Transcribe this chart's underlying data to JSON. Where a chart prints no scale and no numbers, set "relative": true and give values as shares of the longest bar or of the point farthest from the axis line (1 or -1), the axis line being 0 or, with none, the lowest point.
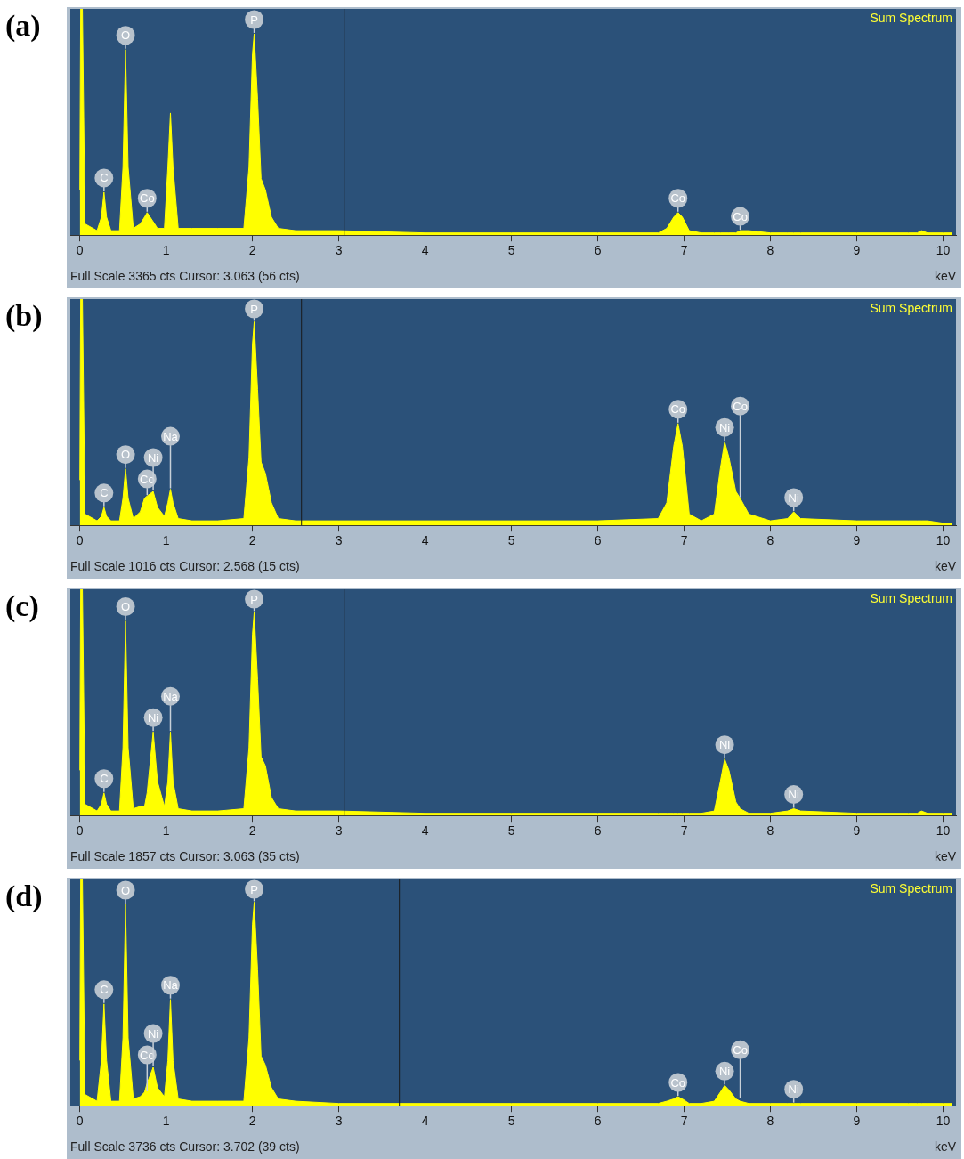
{
  "chart_data": [
    {
      "type": "area",
      "title": "(a)",
      "xlabel": "keV",
      "relative": true,
      "xlim": [
        -0.11,
        10.15
      ],
      "xticks": [
        0,
        1,
        2,
        3,
        4,
        5,
        6,
        7,
        8,
        9,
        10
      ],
      "legend": false,
      "grid": false,
      "x": [
        0,
        0.01,
        0.03,
        0.06,
        0.2,
        0.25,
        0.28,
        0.31,
        0.36,
        0.46,
        0.5,
        0.53,
        0.56,
        0.62,
        0.7,
        0.75,
        0.78,
        0.85,
        0.9,
        0.98,
        1.02,
        1.05,
        1.08,
        1.14,
        1.3,
        1.6,
        1.9,
        1.96,
        2.0,
        2.02,
        2.06,
        2.1,
        2.15,
        2.22,
        2.3,
        2.5,
        3.0,
        4.0,
        5.0,
        6.0,
        6.7,
        6.8,
        6.88,
        6.93,
        6.98,
        7.06,
        7.2,
        7.35,
        7.42,
        7.47,
        7.52,
        7.6,
        7.65,
        7.75,
        8.0,
        8.2,
        8.27,
        8.35,
        9.0,
        9.6,
        9.7,
        9.75,
        9.82,
        10.0,
        10.1
      ],
      "series": [
        {
          "color": "#ffff00",
          "values": [
            0.2,
            1,
            1,
            0.05,
            0.02,
            0.08,
            0.19,
            0.08,
            0.02,
            0.02,
            0.3,
            0.82,
            0.3,
            0.03,
            0.05,
            0.08,
            0.1,
            0.06,
            0.03,
            0.03,
            0.3,
            0.54,
            0.3,
            0.03,
            0.03,
            0.03,
            0.03,
            0.3,
            0.8,
            0.89,
            0.6,
            0.25,
            0.2,
            0.08,
            0.03,
            0.02,
            0.02,
            0.01,
            0.01,
            0.01,
            0.01,
            0.03,
            0.08,
            0.1,
            0.08,
            0.02,
            0.01,
            0.01,
            0.01,
            0.01,
            0.01,
            0.01,
            0.02,
            0.02,
            0.01,
            0.01,
            0.01,
            0.01,
            0.01,
            0.01,
            0.01,
            0.02,
            0.01,
            0.01,
            0.01
          ]
        }
      ],
      "ref_lines": [
        {
          "axis": "x",
          "value": 3.063,
          "color": "#1a1a1a"
        }
      ],
      "annotations": [
        "Sum Spectrum",
        "Full Scale 3365 cts Cursor: 3.063 (56 cts)",
        {
          "text": "C",
          "x": 0.28,
          "y": 0.19
        },
        {
          "text": "O",
          "x": 0.53,
          "y": 0.82
        },
        {
          "text": "Co",
          "x": 0.78,
          "y": 0.1
        },
        {
          "text": "P",
          "x": 2.02,
          "y": 0.89
        },
        {
          "text": "Co",
          "x": 6.93,
          "y": 0.1
        },
        {
          "text": "Co",
          "x": 7.65,
          "y": 0.02
        }
      ]
    },
    {
      "type": "area",
      "title": "(b)",
      "xlabel": "keV",
      "relative": true,
      "xlim": [
        -0.11,
        10.15
      ],
      "xticks": [
        0,
        1,
        2,
        3,
        4,
        5,
        6,
        7,
        8,
        9,
        10
      ],
      "legend": false,
      "grid": false,
      "x": [
        0,
        0.01,
        0.03,
        0.06,
        0.2,
        0.25,
        0.28,
        0.31,
        0.36,
        0.46,
        0.5,
        0.53,
        0.56,
        0.62,
        0.7,
        0.75,
        0.78,
        0.85,
        0.9,
        0.98,
        1.02,
        1.05,
        1.08,
        1.14,
        1.3,
        1.6,
        1.9,
        1.96,
        2.0,
        2.02,
        2.06,
        2.1,
        2.15,
        2.22,
        2.3,
        2.5,
        3.0,
        4.0,
        5.0,
        6.0,
        6.7,
        6.8,
        6.88,
        6.93,
        6.98,
        7.06,
        7.2,
        7.35,
        7.42,
        7.47,
        7.52,
        7.6,
        7.65,
        7.75,
        8.0,
        8.2,
        8.27,
        8.35,
        9.0,
        9.6,
        9.7,
        9.75,
        9.82,
        10.0,
        10.1
      ],
      "series": [
        {
          "color": "#ffff00",
          "values": [
            0.2,
            1,
            1,
            0.05,
            0.02,
            0.04,
            0.08,
            0.04,
            0.02,
            0.02,
            0.12,
            0.25,
            0.12,
            0.03,
            0.06,
            0.12,
            0.13,
            0.15,
            0.08,
            0.04,
            0.1,
            0.16,
            0.1,
            0.03,
            0.02,
            0.02,
            0.03,
            0.3,
            0.8,
            0.9,
            0.6,
            0.28,
            0.23,
            0.1,
            0.03,
            0.02,
            0.02,
            0.02,
            0.02,
            0.02,
            0.03,
            0.1,
            0.35,
            0.45,
            0.35,
            0.05,
            0.02,
            0.05,
            0.25,
            0.37,
            0.3,
            0.15,
            0.12,
            0.05,
            0.02,
            0.03,
            0.06,
            0.03,
            0.02,
            0.02,
            0.02,
            0.02,
            0.02,
            0.01,
            0.01
          ]
        }
      ],
      "ref_lines": [
        {
          "axis": "x",
          "value": 2.568,
          "color": "#1a1a1a"
        }
      ],
      "annotations": [
        "Sum Spectrum",
        "Full Scale 1016 cts Cursor: 2.568 (15 cts)",
        {
          "text": "C",
          "x": 0.28,
          "y": 0.08
        },
        {
          "text": "O",
          "x": 0.53,
          "y": 0.25
        },
        {
          "text": "Co",
          "x": 0.78,
          "y": 0.13
        },
        {
          "text": "Ni",
          "x": 0.85,
          "y": 0.15
        },
        {
          "text": "Na",
          "x": 1.05,
          "y": 0.16
        },
        {
          "text": "P",
          "x": 2.02,
          "y": 0.9
        },
        {
          "text": "Co",
          "x": 6.93,
          "y": 0.45
        },
        {
          "text": "Ni",
          "x": 7.47,
          "y": 0.37
        },
        {
          "text": "Co",
          "x": 7.65,
          "y": 0.12
        },
        {
          "text": "Ni",
          "x": 8.27,
          "y": 0.06
        }
      ]
    },
    {
      "type": "area",
      "title": "(c)",
      "xlabel": "keV",
      "relative": true,
      "xlim": [
        -0.11,
        10.15
      ],
      "xticks": [
        0,
        1,
        2,
        3,
        4,
        5,
        6,
        7,
        8,
        9,
        10
      ],
      "legend": false,
      "grid": false,
      "x": [
        0,
        0.01,
        0.03,
        0.06,
        0.2,
        0.25,
        0.28,
        0.31,
        0.36,
        0.46,
        0.5,
        0.53,
        0.56,
        0.62,
        0.7,
        0.75,
        0.78,
        0.85,
        0.9,
        0.98,
        1.02,
        1.05,
        1.08,
        1.14,
        1.3,
        1.6,
        1.9,
        1.96,
        2.0,
        2.02,
        2.06,
        2.1,
        2.15,
        2.22,
        2.3,
        2.5,
        3.0,
        4.0,
        5.0,
        6.0,
        6.7,
        6.8,
        6.88,
        6.93,
        6.98,
        7.06,
        7.2,
        7.35,
        7.42,
        7.47,
        7.52,
        7.6,
        7.65,
        7.75,
        8.0,
        8.2,
        8.27,
        8.35,
        9.0,
        9.6,
        9.7,
        9.75,
        9.82,
        10.0,
        10.1
      ],
      "series": [
        {
          "color": "#ffff00",
          "values": [
            0.2,
            1,
            1,
            0.05,
            0.02,
            0.05,
            0.1,
            0.05,
            0.02,
            0.02,
            0.3,
            0.86,
            0.3,
            0.03,
            0.04,
            0.04,
            0.1,
            0.37,
            0.15,
            0.04,
            0.15,
            0.37,
            0.15,
            0.03,
            0.02,
            0.02,
            0.03,
            0.3,
            0.8,
            0.9,
            0.6,
            0.26,
            0.22,
            0.08,
            0.03,
            0.02,
            0.02,
            0.01,
            0.01,
            0.01,
            0.01,
            0.01,
            0.01,
            0.01,
            0.01,
            0.01,
            0.01,
            0.02,
            0.15,
            0.25,
            0.2,
            0.06,
            0.03,
            0.01,
            0.01,
            0.02,
            0.03,
            0.02,
            0.01,
            0.01,
            0.01,
            0.02,
            0.01,
            0.01,
            0.01
          ]
        }
      ],
      "ref_lines": [
        {
          "axis": "x",
          "value": 3.063,
          "color": "#1a1a1a"
        }
      ],
      "annotations": [
        "Sum Spectrum",
        "Full Scale 1857 cts Cursor: 3.063 (35 cts)",
        {
          "text": "C",
          "x": 0.28,
          "y": 0.1
        },
        {
          "text": "O",
          "x": 0.53,
          "y": 0.86
        },
        {
          "text": "Ni",
          "x": 0.85,
          "y": 0.37
        },
        {
          "text": "Na",
          "x": 1.05,
          "y": 0.37
        },
        {
          "text": "P",
          "x": 2.02,
          "y": 0.9
        },
        {
          "text": "Ni",
          "x": 7.47,
          "y": 0.25
        },
        {
          "text": "Ni",
          "x": 8.27,
          "y": 0.03
        }
      ]
    },
    {
      "type": "area",
      "title": "(d)",
      "xlabel": "keV",
      "relative": true,
      "xlim": [
        -0.11,
        10.15
      ],
      "xticks": [
        0,
        1,
        2,
        3,
        4,
        5,
        6,
        7,
        8,
        9,
        10
      ],
      "legend": false,
      "grid": false,
      "x": [
        0,
        0.01,
        0.03,
        0.06,
        0.2,
        0.25,
        0.28,
        0.31,
        0.36,
        0.46,
        0.5,
        0.53,
        0.56,
        0.62,
        0.7,
        0.75,
        0.78,
        0.85,
        0.9,
        0.98,
        1.02,
        1.05,
        1.08,
        1.14,
        1.3,
        1.6,
        1.9,
        1.96,
        2.0,
        2.02,
        2.06,
        2.1,
        2.15,
        2.22,
        2.3,
        2.5,
        3.0,
        4.0,
        5.0,
        6.0,
        6.7,
        6.8,
        6.88,
        6.93,
        6.98,
        7.06,
        7.2,
        7.35,
        7.42,
        7.47,
        7.52,
        7.6,
        7.65,
        7.75,
        8.0,
        8.2,
        8.27,
        8.35,
        9.0,
        9.6,
        9.7,
        9.75,
        9.82,
        10.0,
        10.1
      ],
      "series": [
        {
          "color": "#ffff00",
          "values": [
            0.2,
            1,
            1,
            0.05,
            0.02,
            0.2,
            0.45,
            0.2,
            0.02,
            0.02,
            0.3,
            0.89,
            0.3,
            0.03,
            0.04,
            0.06,
            0.1,
            0.17,
            0.08,
            0.04,
            0.2,
            0.47,
            0.2,
            0.03,
            0.02,
            0.02,
            0.02,
            0.3,
            0.8,
            0.9,
            0.6,
            0.22,
            0.18,
            0.08,
            0.03,
            0.02,
            0.01,
            0.01,
            0.01,
            0.01,
            0.01,
            0.02,
            0.03,
            0.04,
            0.03,
            0.01,
            0.01,
            0.02,
            0.06,
            0.09,
            0.07,
            0.03,
            0.02,
            0.01,
            0.01,
            0.01,
            0.01,
            0.01,
            0.01,
            0.01,
            0.01,
            0.01,
            0.01,
            0.01,
            0.01
          ]
        }
      ],
      "ref_lines": [
        {
          "axis": "x",
          "value": 3.702,
          "color": "#1a1a1a"
        }
      ],
      "annotations": [
        "Sum Spectrum",
        "Full Scale 3736 cts Cursor: 3.702 (39 cts)",
        {
          "text": "C",
          "x": 0.28,
          "y": 0.45
        },
        {
          "text": "O",
          "x": 0.53,
          "y": 0.89
        },
        {
          "text": "Co",
          "x": 0.78,
          "y": 0.06
        },
        {
          "text": "Ni",
          "x": 0.85,
          "y": 0.17
        },
        {
          "text": "Na",
          "x": 1.05,
          "y": 0.47
        },
        {
          "text": "P",
          "x": 2.02,
          "y": 0.9
        },
        {
          "text": "Co",
          "x": 6.93,
          "y": 0.04
        },
        {
          "text": "Ni",
          "x": 7.47,
          "y": 0.09
        },
        {
          "text": "Co",
          "x": 7.65,
          "y": 0.03
        },
        {
          "text": "Ni",
          "x": 8.27,
          "y": 0.01
        }
      ]
    }
  ]
}
